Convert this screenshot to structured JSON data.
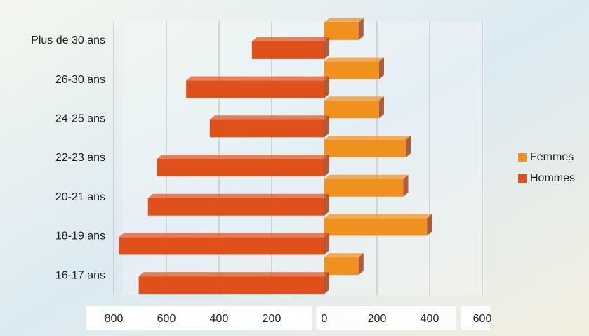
{
  "chart_data": {
    "type": "bar",
    "orientation": "horizontal",
    "categories": [
      "Plus de 30 ans",
      "26-30 ans",
      "24-25 ans",
      "22-23 ans",
      "20-21 ans",
      "18-19 ans",
      "16-17 ans"
    ],
    "series": [
      {
        "name": "Femmes",
        "color": "#f0901e",
        "values": [
          130,
          208,
          208,
          310,
          300,
          390,
          130
        ]
      },
      {
        "name": "Hommes",
        "color": "#e0501a",
        "values": [
          -275,
          -525,
          -435,
          -635,
          -670,
          -780,
          -705
        ]
      }
    ],
    "xlim": [
      -800,
      600
    ],
    "xticks": [
      {
        "value": -800,
        "label": "800"
      },
      {
        "value": -600,
        "label": "600"
      },
      {
        "value": -400,
        "label": "400"
      },
      {
        "value": -200,
        "label": "200"
      },
      0,
      200,
      400,
      600
    ],
    "grid": true,
    "legend": "right"
  }
}
